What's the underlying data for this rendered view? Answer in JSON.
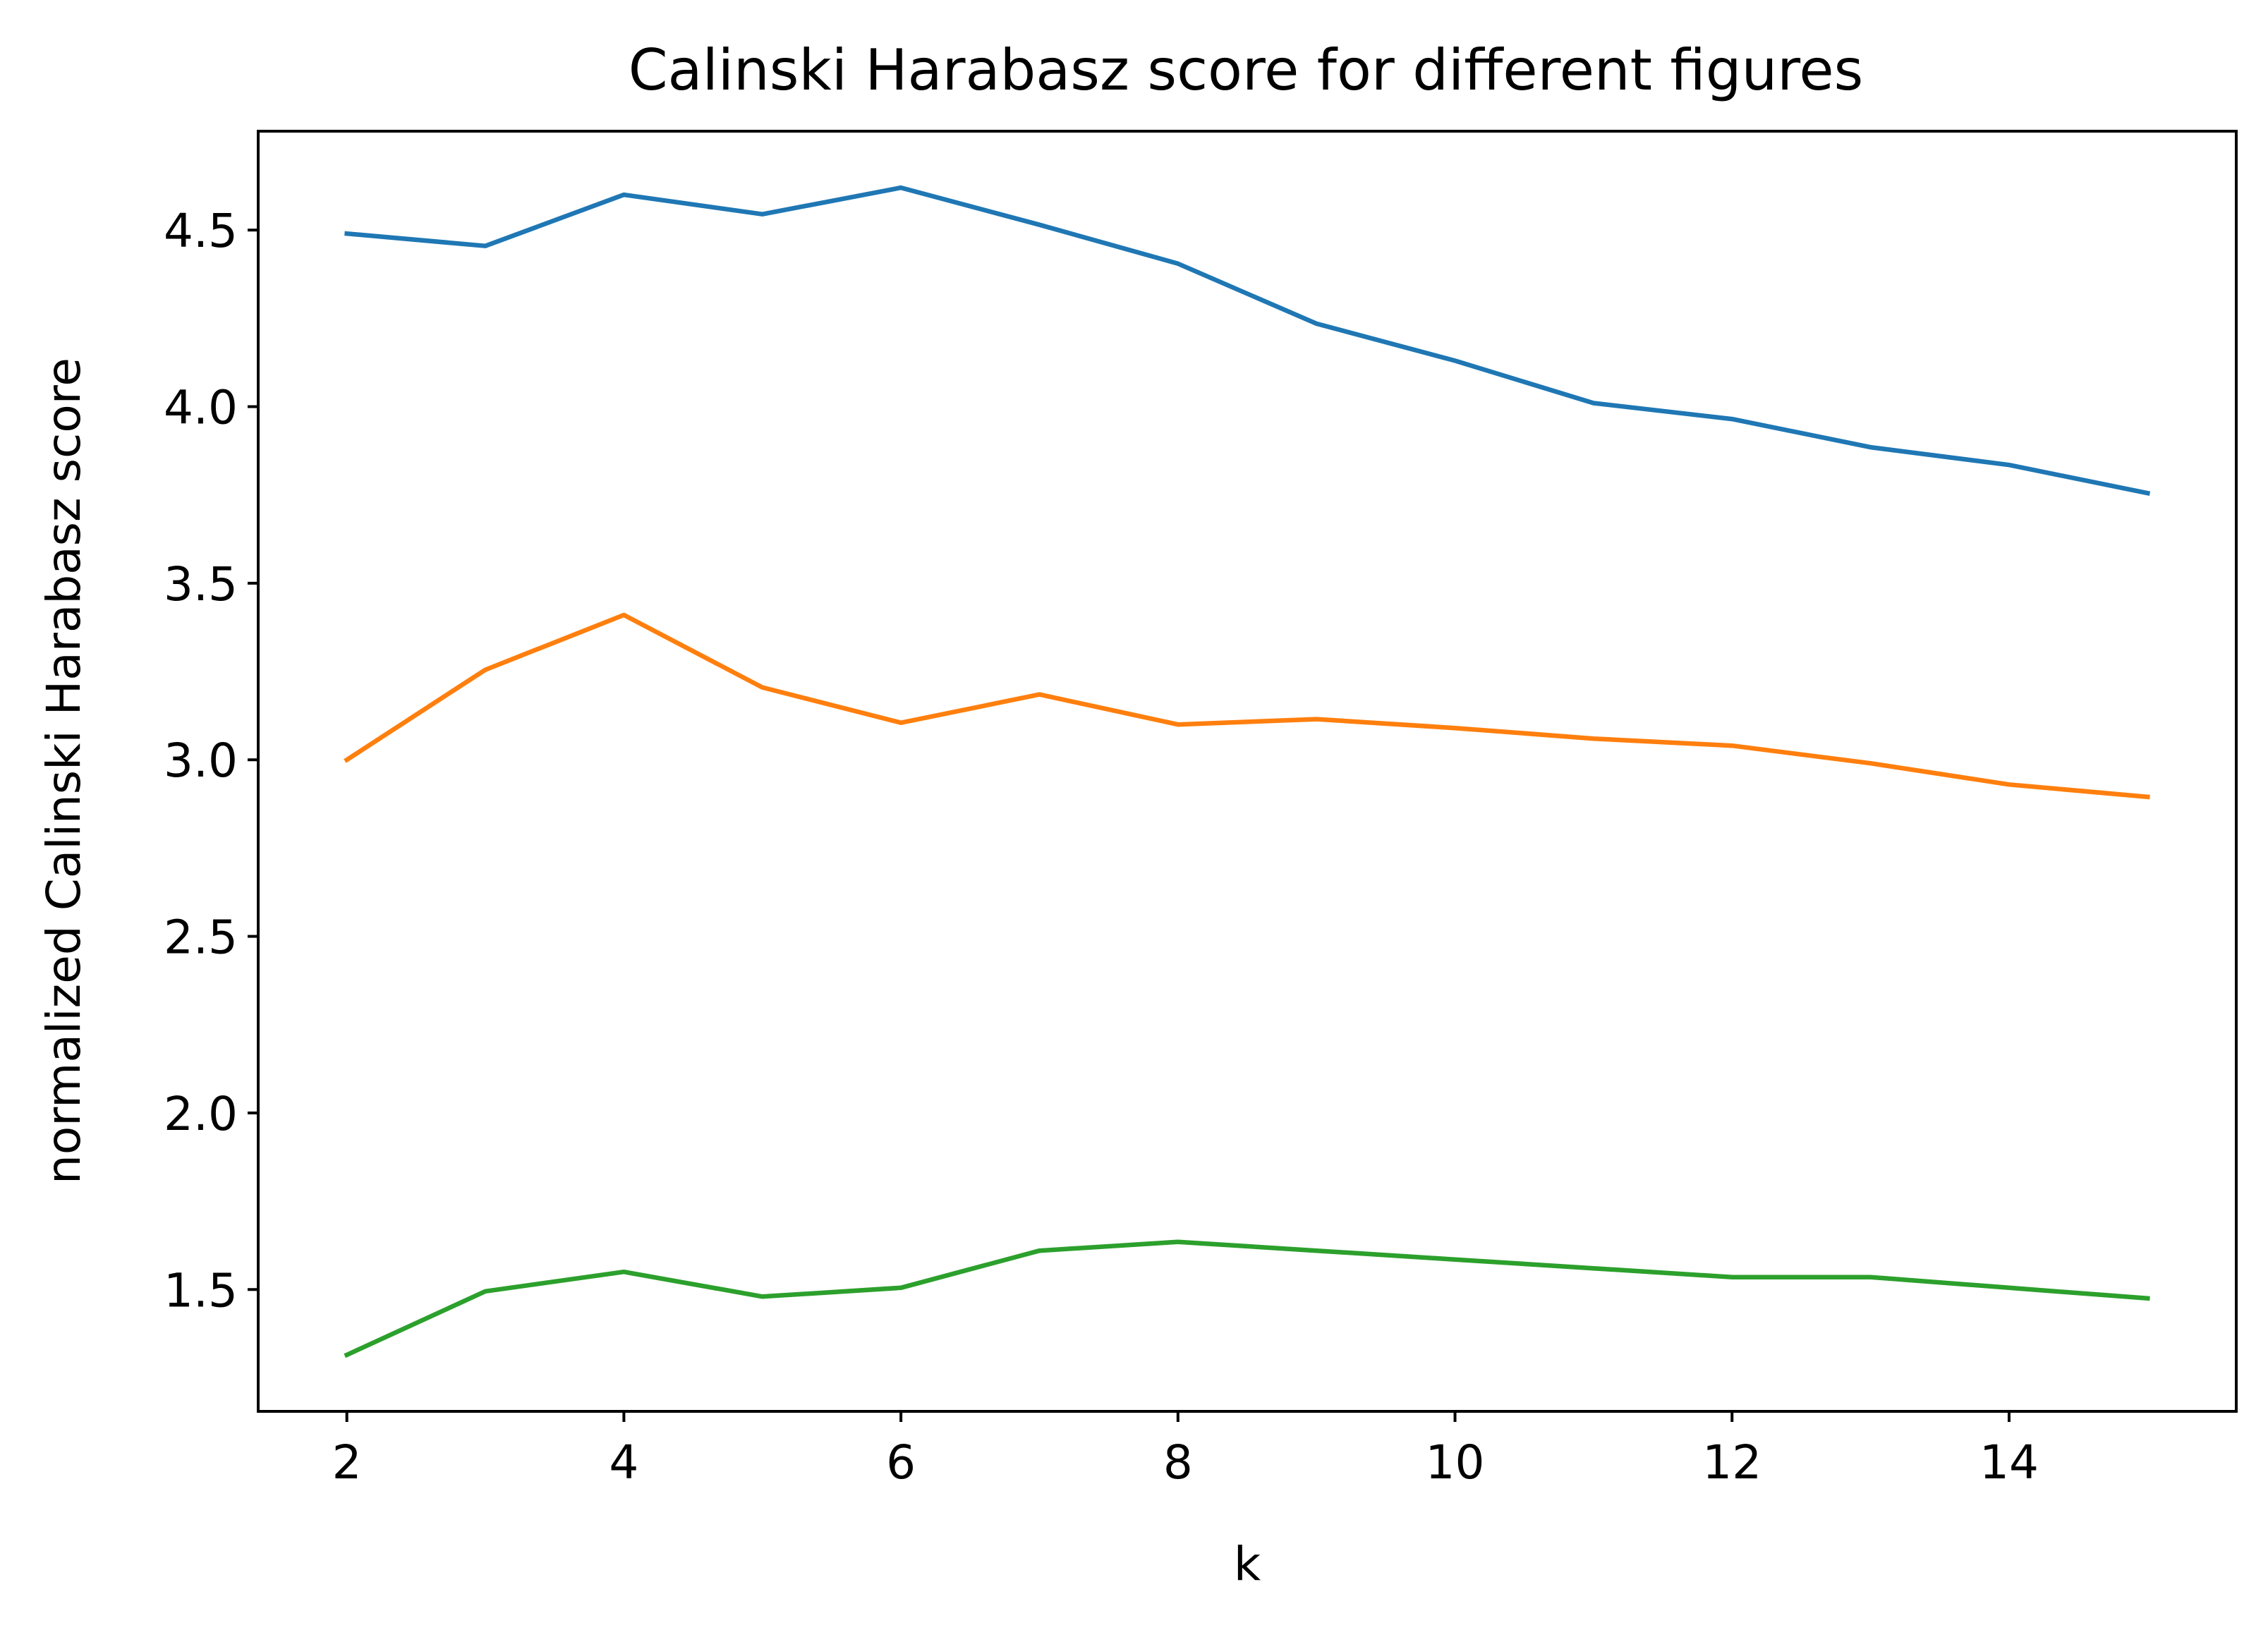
{
  "chart_data": {
    "type": "line",
    "title": "Calinski Harabasz score for different figures",
    "xlabel": "k",
    "ylabel": "normalized Calinski Harabasz score",
    "xlim": [
      1.36,
      15.64
    ],
    "ylim": [
      1.155,
      4.78
    ],
    "x": [
      2,
      3,
      4,
      5,
      6,
      7,
      8,
      9,
      10,
      11,
      12,
      13,
      14,
      15
    ],
    "xticks": [
      2,
      4,
      6,
      8,
      10,
      12,
      14
    ],
    "xtick_labels": [
      "2",
      "4",
      "6",
      "8",
      "10",
      "12",
      "14"
    ],
    "yticks": [
      1.5,
      2.0,
      2.5,
      3.0,
      3.5,
      4.0,
      4.5
    ],
    "ytick_labels": [
      "1.5",
      "2.0",
      "2.5",
      "3.0",
      "3.5",
      "4.0",
      "4.5"
    ],
    "grid": false,
    "legend": false,
    "series": [
      {
        "color": "#1f77b4",
        "values": [
          4.49,
          4.455,
          4.6,
          4.545,
          4.62,
          4.515,
          4.405,
          4.235,
          4.13,
          4.01,
          3.965,
          3.885,
          3.835,
          3.755
        ]
      },
      {
        "color": "#ff7f0e",
        "values": [
          3.0,
          3.255,
          3.41,
          3.205,
          3.105,
          3.185,
          3.1,
          3.115,
          3.09,
          3.06,
          3.04,
          2.99,
          2.93,
          2.895
        ]
      },
      {
        "color": "#2ca02c",
        "values": [
          1.315,
          1.495,
          1.55,
          1.48,
          1.505,
          1.61,
          1.635,
          1.61,
          1.585,
          1.56,
          1.535,
          1.535,
          1.505,
          1.475
        ]
      }
    ]
  }
}
